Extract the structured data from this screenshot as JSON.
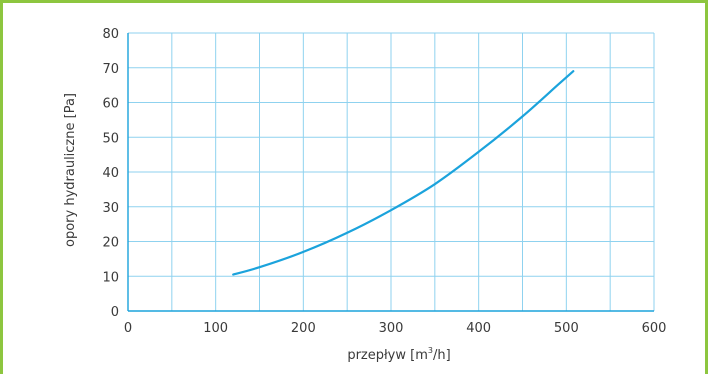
{
  "chart_data": {
    "type": "line",
    "title": "",
    "xlabel": "przepływ [m",
    "xlabel_sup": "3",
    "xlabel_tail": "/h]",
    "ylabel": "opory hydrauliczne [Pa]",
    "xlim": [
      0,
      600
    ],
    "ylim": [
      0,
      80
    ],
    "xticks": [
      0,
      100,
      200,
      300,
      400,
      500,
      600
    ],
    "yticks": [
      0,
      10,
      20,
      30,
      40,
      50,
      60,
      70,
      80
    ],
    "grid_x_step": 50,
    "grid_y_step": 10,
    "grid": true,
    "legend": "none",
    "series": [
      {
        "color": "#1ba3dc",
        "points": [
          [
            120,
            10.5
          ],
          [
            150,
            12.6
          ],
          [
            200,
            17.0
          ],
          [
            250,
            22.5
          ],
          [
            300,
            29.0
          ],
          [
            350,
            36.5
          ],
          [
            400,
            45.8
          ],
          [
            450,
            56.0
          ],
          [
            490,
            65.0
          ],
          [
            508,
            69.0
          ]
        ]
      }
    ]
  },
  "colors": {
    "frame": "#8dc63f",
    "grid": "#8fd2ef",
    "axis": "#1ba3dc",
    "text": "#3a3a3a"
  }
}
